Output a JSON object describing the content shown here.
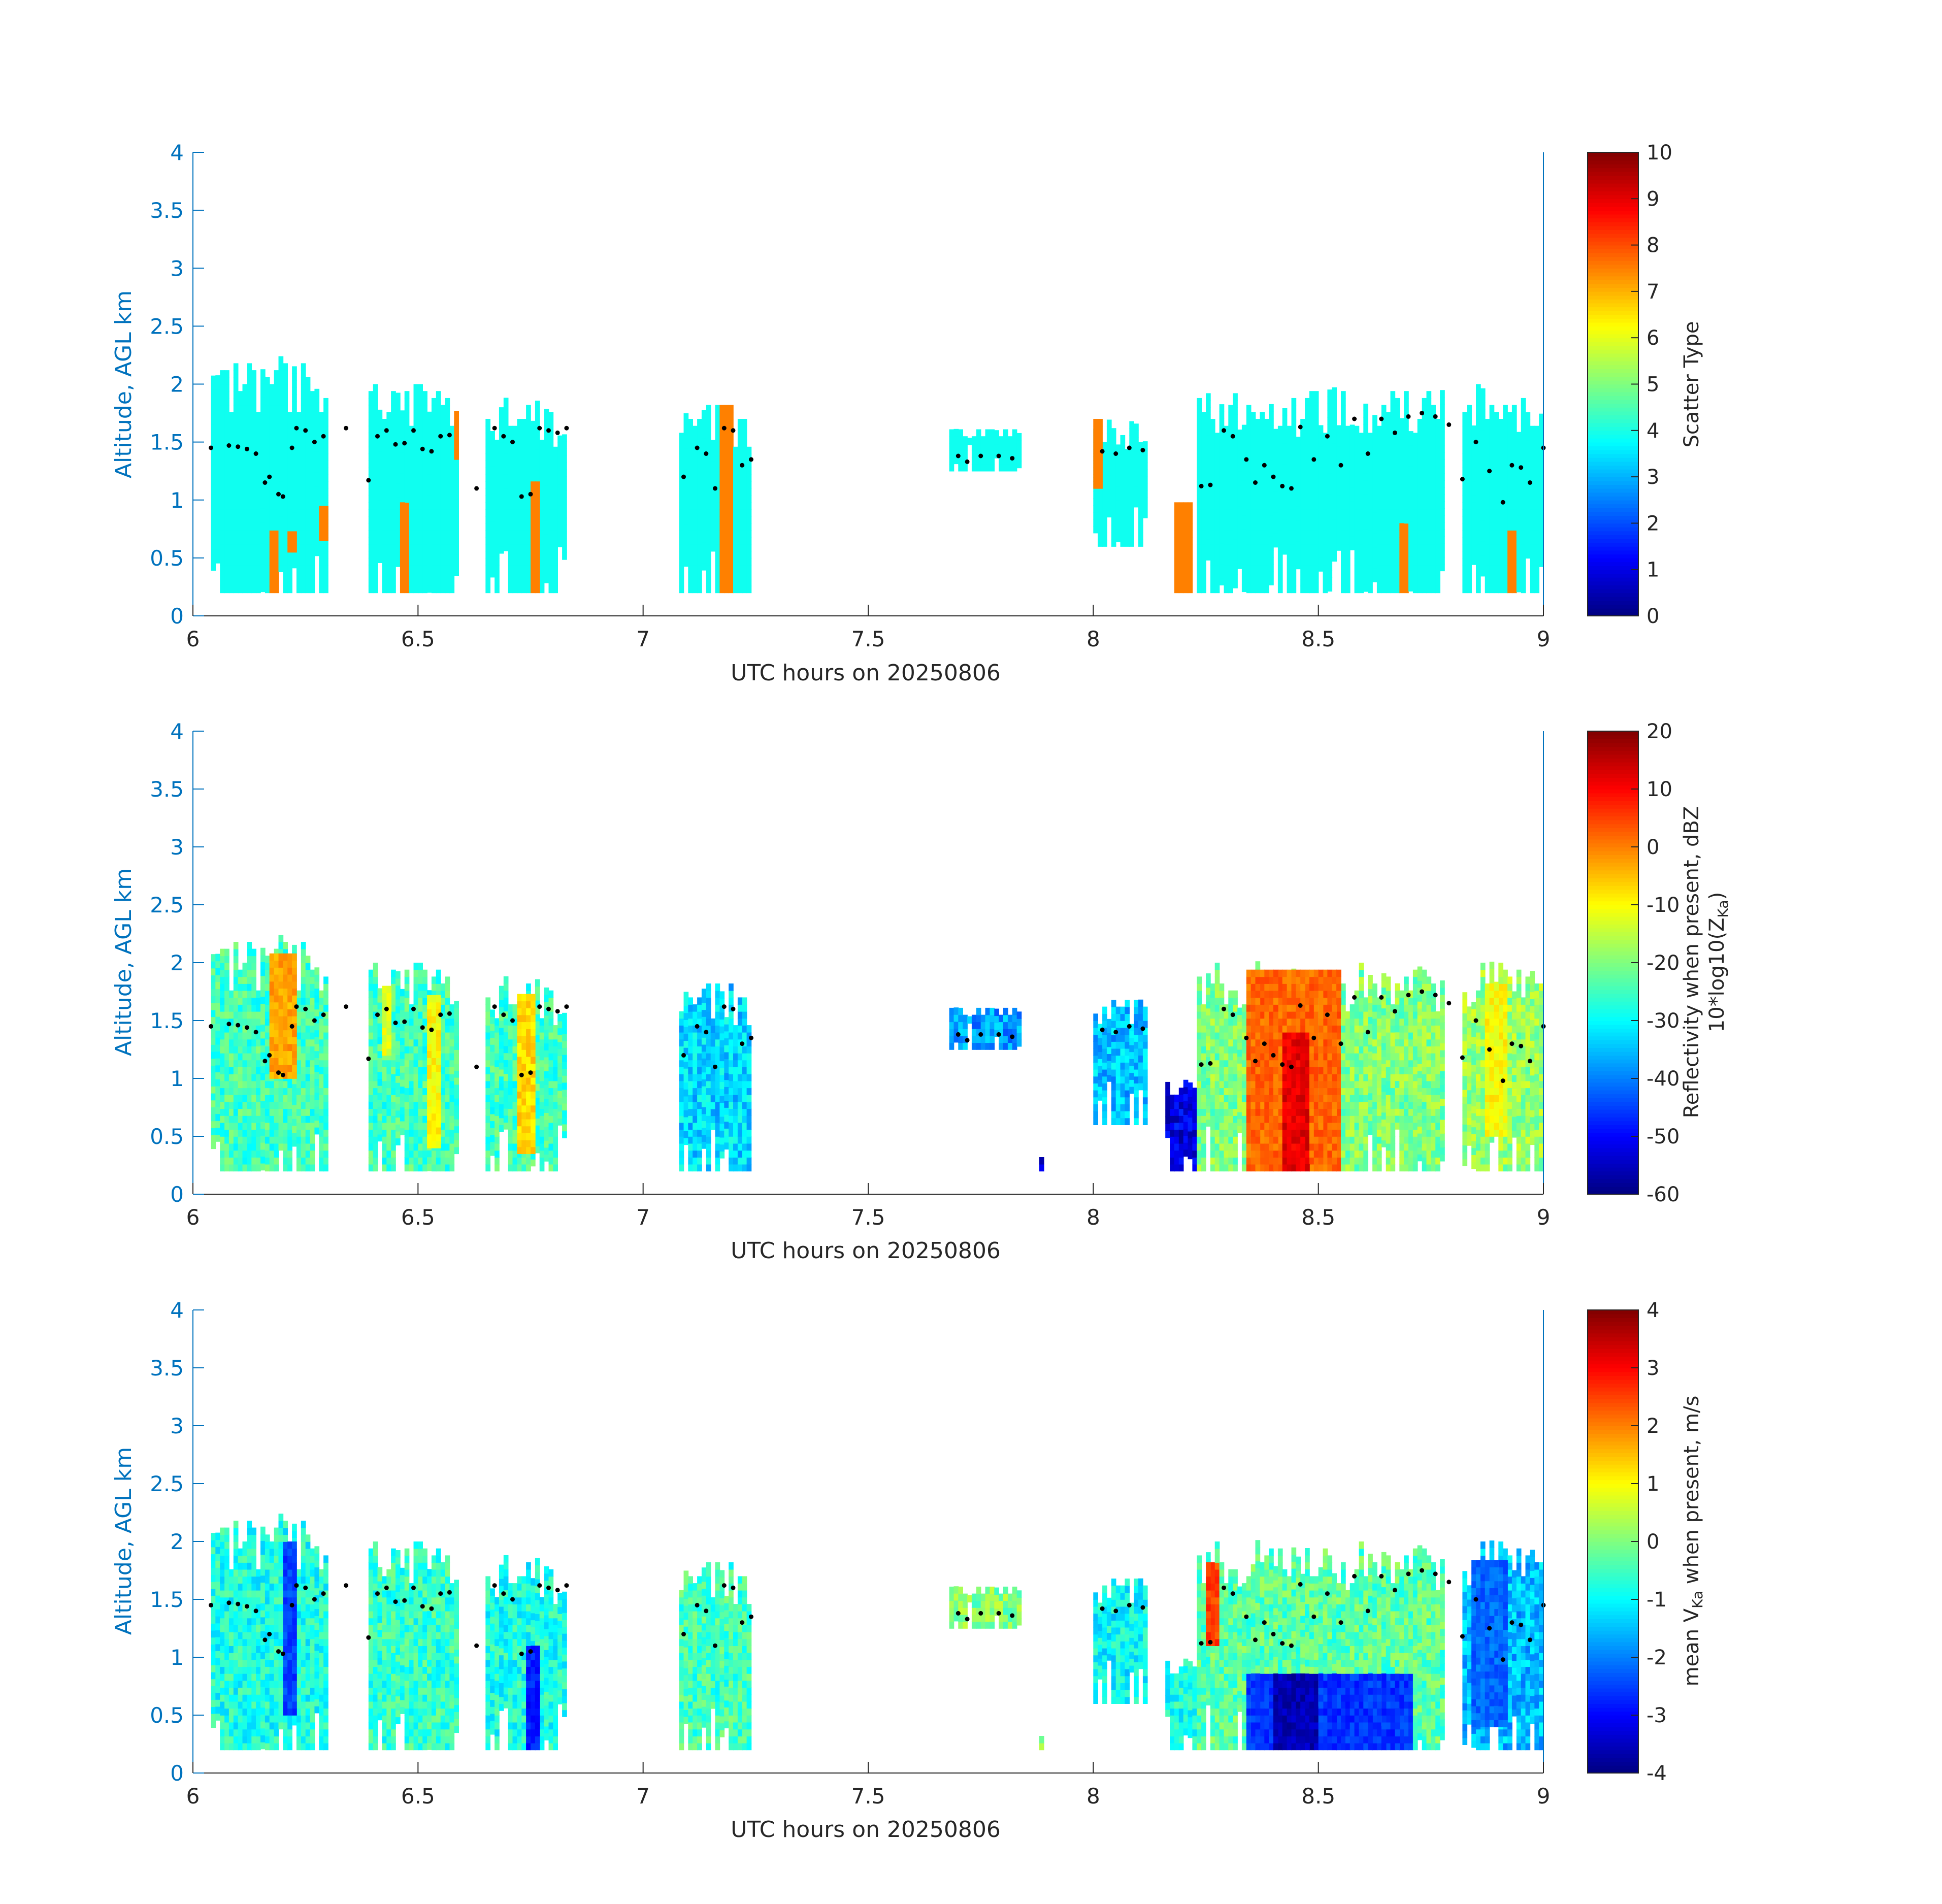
{
  "figure": {
    "panels": 3,
    "axis_color": "#0072bd",
    "text_color": "#262626",
    "colormap": "jet",
    "cloud_base_marker_color": "#000000"
  },
  "chart_data": [
    {
      "type": "heatmap",
      "title": "",
      "xlabel": "UTC hours on 20250806",
      "ylabel": "Altitude, AGL km",
      "xlim": [
        6,
        9
      ],
      "ylim": [
        0,
        4
      ],
      "xticks": [
        "6",
        "6.5",
        "7",
        "7.5",
        "8",
        "8.5",
        "9"
      ],
      "yticks": [
        "0",
        "0.5",
        "1",
        "1.5",
        "2",
        "2.5",
        "3",
        "3.5",
        "4"
      ],
      "colorbar": {
        "label": "Scatter Type",
        "label_line2": "",
        "range": [
          0,
          10
        ],
        "ticks": [
          "0",
          "1",
          "2",
          "3",
          "4",
          "5",
          "6",
          "7",
          "8",
          "9",
          "10"
        ]
      },
      "cloud_columns": [
        {
          "x0": 6.04,
          "x1": 6.3,
          "y0": 0.2,
          "y1": 2.2,
          "value": 3.9
        },
        {
          "x0": 6.39,
          "x1": 6.59,
          "y0": 0.2,
          "y1": 2.0,
          "value": 3.9
        },
        {
          "x0": 6.65,
          "x1": 6.83,
          "y0": 0.2,
          "y1": 1.85,
          "value": 3.9
        },
        {
          "x0": 7.08,
          "x1": 7.24,
          "y0": 0.2,
          "y1": 1.8,
          "value": 3.9
        },
        {
          "x0": 7.68,
          "x1": 7.84,
          "y0": 1.25,
          "y1": 1.6,
          "value": 3.9
        },
        {
          "x0": 8.0,
          "x1": 8.12,
          "y0": 0.6,
          "y1": 1.7,
          "value": 3.9
        },
        {
          "x0": 8.23,
          "x1": 8.78,
          "y0": 0.2,
          "y1": 1.95,
          "value": 3.9
        },
        {
          "x0": 8.82,
          "x1": 9.0,
          "y0": 0.2,
          "y1": 2.0,
          "value": 3.9
        }
      ],
      "precip_regions": [
        {
          "x0": 6.17,
          "x1": 6.19,
          "y0": 0.2,
          "y1": 0.72,
          "value": 7.5
        },
        {
          "x0": 6.21,
          "x1": 6.23,
          "y0": 0.55,
          "y1": 0.72,
          "value": 7.5
        },
        {
          "x0": 6.28,
          "x1": 6.3,
          "y0": 0.65,
          "y1": 0.95,
          "value": 7.5
        },
        {
          "x0": 6.46,
          "x1": 6.48,
          "y0": 0.2,
          "y1": 0.95,
          "value": 7.5
        },
        {
          "x0": 6.58,
          "x1": 6.59,
          "y0": 1.35,
          "y1": 1.75,
          "value": 7.5
        },
        {
          "x0": 6.75,
          "x1": 6.77,
          "y0": 0.2,
          "y1": 1.15,
          "value": 7.5
        },
        {
          "x0": 7.17,
          "x1": 7.2,
          "y0": 0.2,
          "y1": 1.8,
          "value": 7.5
        },
        {
          "x0": 8.0,
          "x1": 8.02,
          "y0": 1.1,
          "y1": 1.65,
          "value": 7.5
        },
        {
          "x0": 8.18,
          "x1": 8.22,
          "y0": 0.2,
          "y1": 0.95,
          "value": 7.5
        },
        {
          "x0": 8.68,
          "x1": 8.7,
          "y0": 0.2,
          "y1": 0.78,
          "value": 7.5
        },
        {
          "x0": 8.92,
          "x1": 8.94,
          "y0": 0.2,
          "y1": 0.72,
          "value": 7.5
        }
      ]
    },
    {
      "type": "heatmap",
      "title": "",
      "xlabel": "UTC hours on 20250806",
      "ylabel": "Altitude, AGL km",
      "xlim": [
        6,
        9
      ],
      "ylim": [
        0,
        4
      ],
      "xticks": [
        "6",
        "6.5",
        "7",
        "7.5",
        "8",
        "8.5",
        "9"
      ],
      "yticks": [
        "0",
        "0.5",
        "1",
        "1.5",
        "2",
        "2.5",
        "3",
        "3.5",
        "4"
      ],
      "colorbar": {
        "label": "Reflectivity when present, dBZ",
        "label_line2": "10*log10(Z",
        "label_sub": "Ka",
        "label_end": ")",
        "range": [
          -60,
          20
        ],
        "ticks": [
          "-60",
          "-50",
          "-40",
          "-30",
          "-20",
          "-10",
          "0",
          "10",
          "20"
        ]
      },
      "cloud_columns": [
        {
          "x0": 6.04,
          "x1": 6.3,
          "y0": 0.2,
          "y1": 2.2,
          "value": -25
        },
        {
          "x0": 6.39,
          "x1": 6.59,
          "y0": 0.2,
          "y1": 2.0,
          "value": -25
        },
        {
          "x0": 6.65,
          "x1": 6.83,
          "y0": 0.2,
          "y1": 1.85,
          "value": -25
        },
        {
          "x0": 7.08,
          "x1": 7.24,
          "y0": 0.2,
          "y1": 1.8,
          "value": -33
        },
        {
          "x0": 7.68,
          "x1": 7.84,
          "y0": 1.25,
          "y1": 1.6,
          "value": -38
        },
        {
          "x0": 7.87,
          "x1": 7.89,
          "y0": 0.2,
          "y1": 0.3,
          "value": -55
        },
        {
          "x0": 8.0,
          "x1": 8.12,
          "y0": 0.6,
          "y1": 1.7,
          "value": -35
        },
        {
          "x0": 8.16,
          "x1": 8.23,
          "y0": 0.2,
          "y1": 1.0,
          "value": -52
        },
        {
          "x0": 8.23,
          "x1": 8.78,
          "y0": 0.2,
          "y1": 2.0,
          "value": -20
        },
        {
          "x0": 8.82,
          "x1": 9.0,
          "y0": 0.2,
          "y1": 2.0,
          "value": -18
        }
      ],
      "cores": [
        {
          "x0": 6.17,
          "x1": 6.23,
          "y0": 1.0,
          "y1": 2.05,
          "value": -3
        },
        {
          "x0": 6.42,
          "x1": 6.44,
          "y0": 1.2,
          "y1": 1.8,
          "value": -12
        },
        {
          "x0": 6.52,
          "x1": 6.55,
          "y0": 0.4,
          "y1": 1.7,
          "value": -10
        },
        {
          "x0": 6.72,
          "x1": 6.76,
          "y0": 0.35,
          "y1": 1.7,
          "value": -7
        },
        {
          "x0": 8.34,
          "x1": 8.55,
          "y0": 0.2,
          "y1": 1.9,
          "value": 2
        },
        {
          "x0": 8.42,
          "x1": 8.48,
          "y0": 0.2,
          "y1": 1.4,
          "value": 12
        },
        {
          "x0": 8.87,
          "x1": 8.92,
          "y0": 0.5,
          "y1": 1.8,
          "value": -10
        }
      ]
    },
    {
      "type": "heatmap",
      "title": "",
      "xlabel": "UTC hours on 20250806",
      "ylabel": "Altitude, AGL km",
      "xlim": [
        6,
        9
      ],
      "ylim": [
        0,
        4
      ],
      "xticks": [
        "6",
        "6.5",
        "7",
        "7.5",
        "8",
        "8.5",
        "9"
      ],
      "yticks": [
        "0",
        "0.5",
        "1",
        "1.5",
        "2",
        "2.5",
        "3",
        "3.5",
        "4"
      ],
      "colorbar": {
        "label": "mean V",
        "label_sub": "Ka",
        "label_end": " when present, m/s",
        "range": [
          -4,
          4
        ],
        "ticks": [
          "-4",
          "-3",
          "-2",
          "-1",
          "0",
          "1",
          "2",
          "3",
          "4"
        ]
      },
      "cloud_columns": [
        {
          "x0": 6.04,
          "x1": 6.3,
          "y0": 0.2,
          "y1": 2.2,
          "value": -0.8
        },
        {
          "x0": 6.39,
          "x1": 6.59,
          "y0": 0.2,
          "y1": 2.0,
          "value": -0.6
        },
        {
          "x0": 6.65,
          "x1": 6.83,
          "y0": 0.2,
          "y1": 1.85,
          "value": -0.8
        },
        {
          "x0": 7.08,
          "x1": 7.24,
          "y0": 0.2,
          "y1": 1.8,
          "value": -0.5
        },
        {
          "x0": 7.68,
          "x1": 7.84,
          "y0": 1.25,
          "y1": 1.6,
          "value": 0.0
        },
        {
          "x0": 7.87,
          "x1": 7.89,
          "y0": 0.2,
          "y1": 0.3,
          "value": 0.0
        },
        {
          "x0": 8.0,
          "x1": 8.12,
          "y0": 0.6,
          "y1": 1.7,
          "value": -1.0
        },
        {
          "x0": 8.16,
          "x1": 8.23,
          "y0": 0.2,
          "y1": 1.0,
          "value": -0.8
        },
        {
          "x0": 8.23,
          "x1": 8.78,
          "y0": 0.2,
          "y1": 2.0,
          "value": -0.3
        },
        {
          "x0": 8.82,
          "x1": 9.0,
          "y0": 0.2,
          "y1": 2.0,
          "value": -1.5
        }
      ],
      "cores": [
        {
          "x0": 6.2,
          "x1": 6.23,
          "y0": 0.5,
          "y1": 2.0,
          "value": -2.5
        },
        {
          "x0": 6.74,
          "x1": 6.77,
          "y0": 0.2,
          "y1": 1.1,
          "value": -2.8
        },
        {
          "x0": 8.34,
          "x1": 8.71,
          "y0": 0.2,
          "y1": 0.85,
          "value": -2.6
        },
        {
          "x0": 8.4,
          "x1": 8.5,
          "y0": 0.2,
          "y1": 0.85,
          "value": -3.6
        },
        {
          "x0": 8.25,
          "x1": 8.28,
          "y0": 1.1,
          "y1": 1.8,
          "value": 2.5
        },
        {
          "x0": 8.84,
          "x1": 8.92,
          "y0": 0.4,
          "y1": 1.8,
          "value": -2.2
        }
      ]
    }
  ],
  "cloud_base_points": {
    "x": [
      6.04,
      6.08,
      6.1,
      6.12,
      6.14,
      6.16,
      6.17,
      6.19,
      6.2,
      6.22,
      6.23,
      6.25,
      6.27,
      6.29,
      6.34,
      6.39,
      6.41,
      6.43,
      6.45,
      6.47,
      6.49,
      6.51,
      6.53,
      6.55,
      6.57,
      6.63,
      6.67,
      6.69,
      6.71,
      6.73,
      6.75,
      6.77,
      6.79,
      6.81,
      6.83,
      7.09,
      7.12,
      7.14,
      7.16,
      7.18,
      7.2,
      7.22,
      7.24,
      7.7,
      7.72,
      7.75,
      7.79,
      7.82,
      8.02,
      8.05,
      8.08,
      8.11,
      8.24,
      8.26,
      8.29,
      8.31,
      8.34,
      8.36,
      8.38,
      8.4,
      8.42,
      8.44,
      8.46,
      8.49,
      8.52,
      8.55,
      8.58,
      8.61,
      8.64,
      8.67,
      8.7,
      8.73,
      8.76,
      8.79,
      8.82,
      8.85,
      8.88,
      8.91,
      8.93,
      8.95,
      8.97,
      9.0
    ],
    "y": [
      1.45,
      1.47,
      1.46,
      1.44,
      1.4,
      1.15,
      1.2,
      1.05,
      1.03,
      1.45,
      1.62,
      1.6,
      1.5,
      1.55,
      1.62,
      1.17,
      1.55,
      1.6,
      1.48,
      1.49,
      1.6,
      1.44,
      1.42,
      1.55,
      1.56,
      1.1,
      1.62,
      1.55,
      1.5,
      1.03,
      1.05,
      1.62,
      1.6,
      1.58,
      1.62,
      1.2,
      1.45,
      1.4,
      1.1,
      1.62,
      1.6,
      1.3,
      1.35,
      1.38,
      1.33,
      1.38,
      1.38,
      1.36,
      1.42,
      1.4,
      1.45,
      1.43,
      1.12,
      1.13,
      1.6,
      1.55,
      1.35,
      1.15,
      1.3,
      1.2,
      1.12,
      1.1,
      1.63,
      1.35,
      1.55,
      1.3,
      1.7,
      1.4,
      1.7,
      1.58,
      1.72,
      1.75,
      1.72,
      1.65,
      1.18,
      1.5,
      1.25,
      0.98,
      1.3,
      1.28,
      1.15,
      1.45
    ]
  }
}
